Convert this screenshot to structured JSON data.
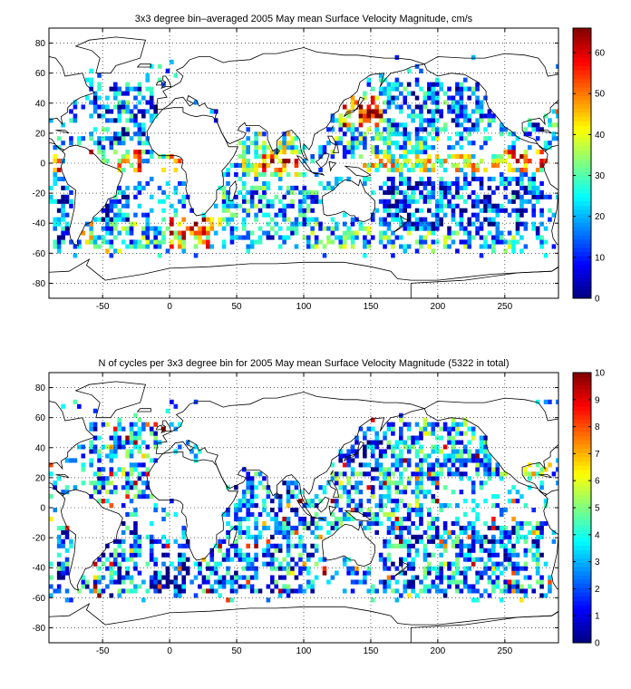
{
  "chart_data": [
    {
      "type": "heatmap",
      "title": "3x3 degree bin–averaged 2005 May mean Surface Velocity Magnitude, cm/s",
      "xlabel": "",
      "ylabel": "",
      "xlim": [
        -90,
        290
      ],
      "ylim": [
        -90,
        90
      ],
      "bin_size_deg": 3,
      "x_ticks": [
        -50,
        0,
        50,
        100,
        150,
        200,
        250
      ],
      "y_ticks": [
        80,
        60,
        40,
        20,
        0,
        -20,
        -40,
        -60,
        -80
      ],
      "colorbar": {
        "min": 0,
        "max": 66,
        "ticks": [
          0,
          10,
          20,
          30,
          40,
          50,
          60
        ],
        "colormap": "jet"
      },
      "grid": true,
      "regions": [
        {
          "lon": [
            -60,
            -10
          ],
          "lat": [
            5,
            50
          ],
          "level": 0.25
        },
        {
          "lon": [
            -25,
            -5
          ],
          "lat": [
            20,
            45
          ],
          "level": 0.15
        },
        {
          "lon": [
            -85,
            -30
          ],
          "lat": [
            -60,
            -15
          ],
          "level": 0.2
        },
        {
          "lon": [
            -65,
            -30
          ],
          "lat": [
            -60,
            -40
          ],
          "level": 0.5
        },
        {
          "lon": [
            -75,
            -20
          ],
          "lat": [
            -5,
            10
          ],
          "level": 0.7
        },
        {
          "lon": [
            -90,
            -80
          ],
          "lat": [
            -5,
            5
          ],
          "level": 0.8
        },
        {
          "lon": [
            -50,
            0
          ],
          "lat": [
            -58,
            -40
          ],
          "level": 0.35
        },
        {
          "lon": [
            0,
            30
          ],
          "lat": [
            -58,
            -35
          ],
          "level": 0.7
        },
        {
          "lon": [
            10,
            45
          ],
          "lat": [
            -45,
            -35
          ],
          "level": 0.85
        },
        {
          "lon": [
            -10,
            10
          ],
          "lat": [
            -5,
            5
          ],
          "level": 0.6
        },
        {
          "lon": [
            30,
            50
          ],
          "lat": [
            30,
            45
          ],
          "level": 0.3
        },
        {
          "lon": [
            50,
            100
          ],
          "lat": [
            -10,
            20
          ],
          "level": 0.45
        },
        {
          "lon": [
            70,
            95
          ],
          "lat": [
            -5,
            5
          ],
          "level": 0.85
        },
        {
          "lon": [
            40,
            110
          ],
          "lat": [
            -50,
            -15
          ],
          "level": 0.3
        },
        {
          "lon": [
            100,
            150
          ],
          "lat": [
            -58,
            -40
          ],
          "level": 0.35
        },
        {
          "lon": [
            125,
            165
          ],
          "lat": [
            20,
            45
          ],
          "level": 0.75
        },
        {
          "lon": [
            140,
            160
          ],
          "lat": [
            30,
            42
          ],
          "level": 0.95
        },
        {
          "lon": [
            120,
            200
          ],
          "lat": [
            5,
            25
          ],
          "level": 0.35
        },
        {
          "lon": [
            140,
            280
          ],
          "lat": [
            -5,
            5
          ],
          "level": 0.55
        },
        {
          "lon": [
            250,
            285
          ],
          "lat": [
            -3,
            8
          ],
          "level": 0.8
        },
        {
          "lon": [
            160,
            280
          ],
          "lat": [
            -50,
            -10
          ],
          "level": 0.2
        },
        {
          "lon": [
            160,
            280
          ],
          "lat": [
            20,
            55
          ],
          "level": 0.25
        },
        {
          "lon": [
            160,
            260
          ],
          "lat": [
            -60,
            -45
          ],
          "level": 0.35
        },
        {
          "lon": [
            280,
            290
          ],
          "lat": [
            20,
            45
          ],
          "level": 0.55
        }
      ]
    },
    {
      "type": "heatmap",
      "title": "N of cycles per 3x3 degree bin for 2005 May mean Surface Velocity Magnitude (5322 in total)",
      "xlabel": "",
      "ylabel": "",
      "xlim": [
        -90,
        290
      ],
      "ylim": [
        -90,
        90
      ],
      "bin_size_deg": 3,
      "x_ticks": [
        -50,
        0,
        50,
        100,
        150,
        200,
        250
      ],
      "y_ticks": [
        80,
        60,
        40,
        20,
        0,
        -20,
        -40,
        -60,
        -80
      ],
      "colorbar": {
        "min": 0,
        "max": 10,
        "ticks": [
          0,
          1,
          2,
          3,
          4,
          5,
          6,
          7,
          8,
          9,
          10
        ],
        "colormap": "jet"
      },
      "grid": true,
      "regions": [
        {
          "lon": [
            -60,
            -10
          ],
          "lat": [
            5,
            60
          ],
          "level": 0.3
        },
        {
          "lon": [
            -85,
            -20
          ],
          "lat": [
            -60,
            -10
          ],
          "level": 0.25
        },
        {
          "lon": [
            -15,
            15
          ],
          "lat": [
            -60,
            -20
          ],
          "level": 0.15
        },
        {
          "lon": [
            20,
            110
          ],
          "lat": [
            -60,
            25
          ],
          "level": 0.25
        },
        {
          "lon": [
            125,
            160
          ],
          "lat": [
            20,
            45
          ],
          "level": 0.15
        },
        {
          "lon": [
            120,
            200
          ],
          "lat": [
            -20,
            25
          ],
          "level": 0.3
        },
        {
          "lon": [
            160,
            280
          ],
          "lat": [
            -60,
            -10
          ],
          "level": 0.25
        },
        {
          "lon": [
            160,
            280
          ],
          "lat": [
            20,
            60
          ],
          "level": 0.3
        },
        {
          "lon": [
            260,
            285
          ],
          "lat": [
            20,
            40
          ],
          "level": 0.55
        }
      ]
    }
  ]
}
